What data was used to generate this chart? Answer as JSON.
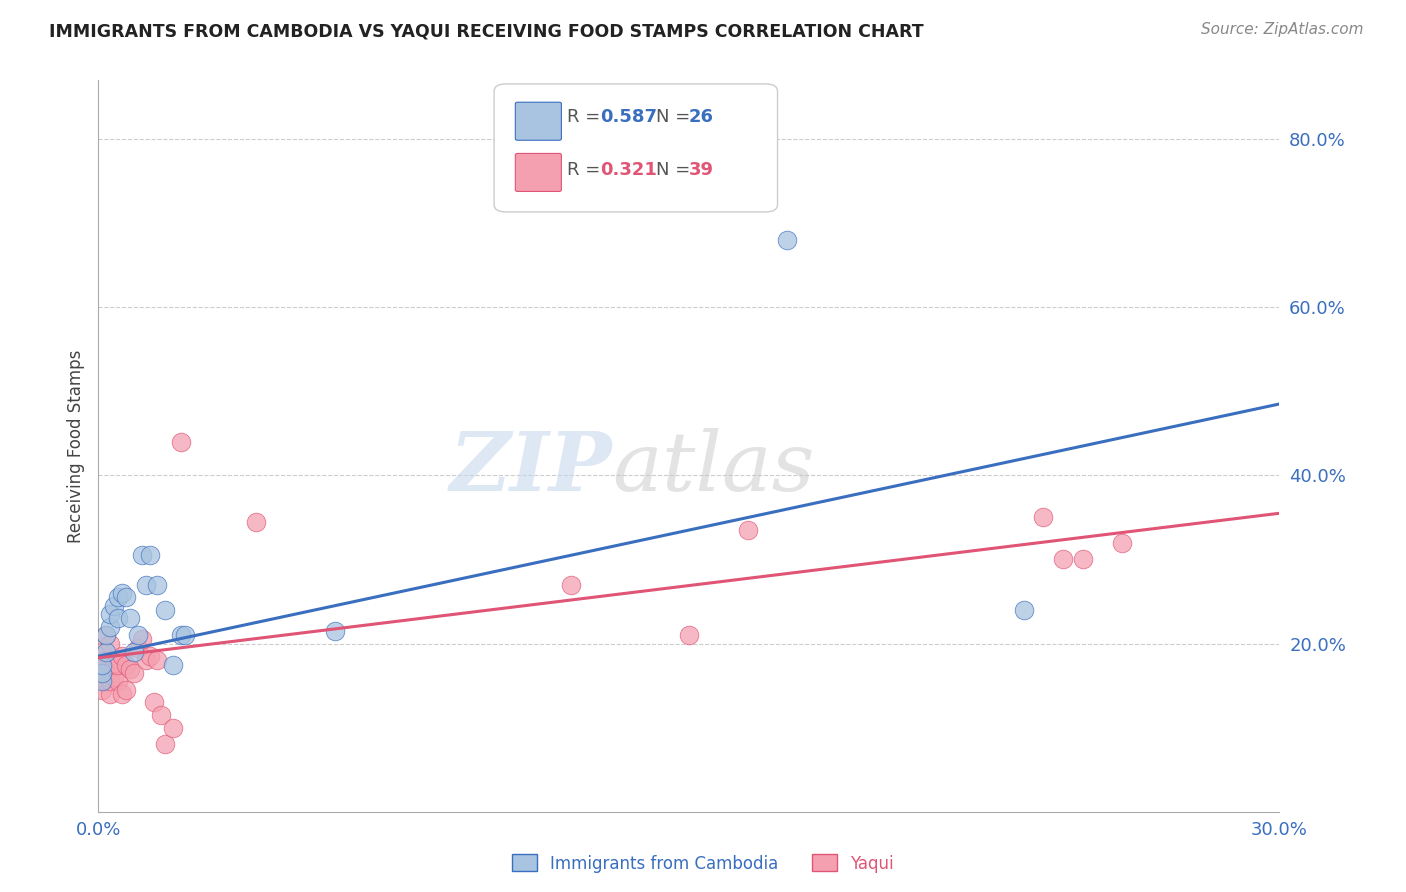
{
  "title": "IMMIGRANTS FROM CAMBODIA VS YAQUI RECEIVING FOOD STAMPS CORRELATION CHART",
  "source": "Source: ZipAtlas.com",
  "ylabel": "Receiving Food Stamps",
  "xlim": [
    0.0,
    0.3
  ],
  "ylim": [
    0.0,
    0.87
  ],
  "xticks": [
    0.0,
    0.3
  ],
  "yticks_right": [
    0.2,
    0.4,
    0.6,
    0.8
  ],
  "background_color": "#ffffff",
  "grid_color": "#cccccc",
  "cambodia_color": "#a8c4e0",
  "yaqui_color": "#f4a0b0",
  "cambodia_line_color": "#3a6ebf",
  "yaqui_line_color": "#e05575",
  "legend_R_cambodia": "0.587",
  "legend_N_cambodia": "26",
  "legend_R_yaqui": "0.321",
  "legend_N_yaqui": "39",
  "cam_trend_x0": 0.0,
  "cam_trend_y0": 0.185,
  "cam_trend_x1": 0.3,
  "cam_trend_y1": 0.485,
  "yaq_trend_x0": 0.0,
  "yaq_trend_y0": 0.183,
  "yaq_trend_x1": 0.3,
  "yaq_trend_y1": 0.355,
  "cambodia_x": [
    0.001,
    0.001,
    0.001,
    0.002,
    0.002,
    0.003,
    0.003,
    0.004,
    0.005,
    0.005,
    0.006,
    0.007,
    0.008,
    0.009,
    0.01,
    0.011,
    0.012,
    0.013,
    0.015,
    0.017,
    0.019,
    0.021,
    0.022,
    0.06,
    0.175,
    0.235
  ],
  "cambodia_y": [
    0.155,
    0.165,
    0.175,
    0.19,
    0.21,
    0.22,
    0.235,
    0.245,
    0.255,
    0.23,
    0.26,
    0.255,
    0.23,
    0.19,
    0.21,
    0.305,
    0.27,
    0.305,
    0.27,
    0.24,
    0.175,
    0.21,
    0.21,
    0.215,
    0.68,
    0.24
  ],
  "yaqui_x": [
    0.001,
    0.001,
    0.001,
    0.001,
    0.002,
    0.002,
    0.002,
    0.002,
    0.003,
    0.003,
    0.003,
    0.004,
    0.004,
    0.005,
    0.005,
    0.006,
    0.006,
    0.007,
    0.007,
    0.008,
    0.009,
    0.01,
    0.011,
    0.012,
    0.013,
    0.014,
    0.015,
    0.016,
    0.017,
    0.019,
    0.021,
    0.04,
    0.12,
    0.15,
    0.165,
    0.24,
    0.245,
    0.25,
    0.26
  ],
  "yaqui_y": [
    0.145,
    0.16,
    0.175,
    0.19,
    0.155,
    0.165,
    0.18,
    0.21,
    0.14,
    0.155,
    0.2,
    0.16,
    0.175,
    0.155,
    0.175,
    0.14,
    0.185,
    0.145,
    0.175,
    0.17,
    0.165,
    0.195,
    0.205,
    0.18,
    0.185,
    0.13,
    0.18,
    0.115,
    0.08,
    0.1,
    0.44,
    0.345,
    0.27,
    0.21,
    0.335,
    0.35,
    0.3,
    0.3,
    0.32
  ]
}
